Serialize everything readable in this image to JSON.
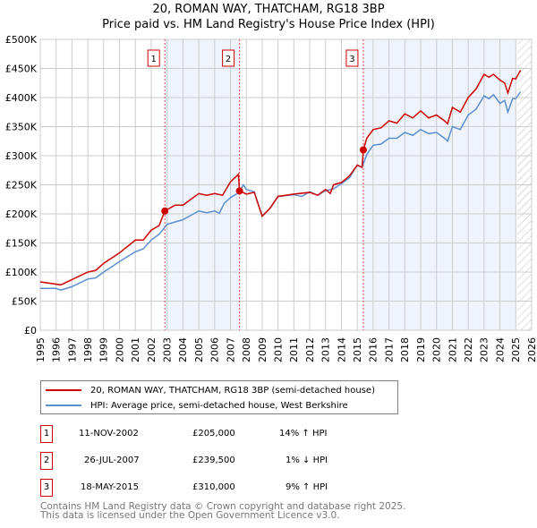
{
  "chart_data": {
    "type": "line",
    "title": "20, ROMAN WAY, THATCHAM, RG18 3BP",
    "subtitle": "Price paid vs. HM Land Registry's House Price Index (HPI)",
    "xlim": [
      1995,
      2026
    ],
    "ylim": [
      0,
      500000
    ],
    "y_ticks": [
      0,
      50000,
      100000,
      150000,
      200000,
      250000,
      300000,
      350000,
      400000,
      450000,
      500000
    ],
    "y_tick_labels": [
      "£0",
      "£50K",
      "£100K",
      "£150K",
      "£200K",
      "£250K",
      "£300K",
      "£350K",
      "£400K",
      "£450K",
      "£500K"
    ],
    "x_ticks": [
      1995,
      1996,
      1997,
      1998,
      1999,
      2000,
      2001,
      2002,
      2003,
      2004,
      2005,
      2006,
      2007,
      2008,
      2009,
      2010,
      2011,
      2012,
      2013,
      2014,
      2015,
      2016,
      2017,
      2018,
      2019,
      2020,
      2021,
      2022,
      2023,
      2024,
      2025,
      2026
    ],
    "grid": true,
    "shaded_periods": [
      [
        2002.86,
        2007.57
      ],
      [
        2015.38,
        2025.0
      ]
    ],
    "forecast_hatch_from": 2025.1,
    "series": [
      {
        "name": "20, ROMAN WAY, THATCHAM, RG18 3BP (semi-detached house)",
        "color": "#cc0000",
        "points": [
          [
            1995,
            83
          ],
          [
            1996.3,
            78
          ],
          [
            1997,
            87
          ],
          [
            1998,
            100
          ],
          [
            1998.5,
            103
          ],
          [
            1999,
            115
          ],
          [
            2000,
            133
          ],
          [
            2001,
            155
          ],
          [
            2001.5,
            155
          ],
          [
            2002,
            172
          ],
          [
            2002.5,
            180
          ],
          [
            2002.86,
            205
          ],
          [
            2003.5,
            215
          ],
          [
            2004,
            215
          ],
          [
            2005,
            235
          ],
          [
            2005.5,
            232
          ],
          [
            2006,
            235
          ],
          [
            2006.5,
            232
          ],
          [
            2007,
            255
          ],
          [
            2007.5,
            268
          ],
          [
            2007.57,
            240
          ],
          [
            2008,
            234
          ],
          [
            2008.5,
            237
          ],
          [
            2009,
            196
          ],
          [
            2009.5,
            210
          ],
          [
            2010,
            230
          ],
          [
            2011,
            234
          ],
          [
            2012,
            237
          ],
          [
            2012.5,
            232
          ],
          [
            2013,
            242
          ],
          [
            2013.3,
            235
          ],
          [
            2013.5,
            250
          ],
          [
            2014,
            254
          ],
          [
            2014.5,
            265
          ],
          [
            2015,
            284
          ],
          [
            2015.3,
            280
          ],
          [
            2015.38,
            310
          ],
          [
            2015.6,
            330
          ],
          [
            2016,
            345
          ],
          [
            2016.5,
            348
          ],
          [
            2017,
            360
          ],
          [
            2017.5,
            356
          ],
          [
            2018,
            372
          ],
          [
            2018.5,
            365
          ],
          [
            2019,
            377
          ],
          [
            2019.5,
            365
          ],
          [
            2020,
            370
          ],
          [
            2020.5,
            360
          ],
          [
            2020.7,
            355
          ],
          [
            2021,
            383
          ],
          [
            2021.5,
            375
          ],
          [
            2022,
            400
          ],
          [
            2022.5,
            415
          ],
          [
            2023,
            440
          ],
          [
            2023.3,
            435
          ],
          [
            2023.6,
            440
          ],
          [
            2024,
            430
          ],
          [
            2024.3,
            425
          ],
          [
            2024.5,
            408
          ],
          [
            2024.8,
            433
          ],
          [
            2025,
            432
          ],
          [
            2025.3,
            447
          ]
        ]
      },
      {
        "name": "HPI: Average price, semi-detached house, West Berkshire",
        "color": "#5b8fd0",
        "points": [
          [
            1995,
            72
          ],
          [
            1996,
            72
          ],
          [
            1996.3,
            69
          ],
          [
            1997,
            75
          ],
          [
            1998,
            88
          ],
          [
            1998.5,
            90
          ],
          [
            1999,
            100
          ],
          [
            2000,
            118
          ],
          [
            2001,
            135
          ],
          [
            2001.5,
            140
          ],
          [
            2002,
            155
          ],
          [
            2002.5,
            165
          ],
          [
            2003,
            182
          ],
          [
            2004,
            190
          ],
          [
            2005,
            205
          ],
          [
            2005.5,
            202
          ],
          [
            2006,
            205
          ],
          [
            2006.3,
            201
          ],
          [
            2006.6,
            218
          ],
          [
            2007,
            228
          ],
          [
            2007.6,
            238
          ],
          [
            2007.8,
            250
          ],
          [
            2008,
            242
          ],
          [
            2008.5,
            238
          ],
          [
            2009,
            196
          ],
          [
            2009.5,
            210
          ],
          [
            2010,
            230
          ],
          [
            2011,
            233
          ],
          [
            2011.5,
            230
          ],
          [
            2012,
            238
          ],
          [
            2012.5,
            232
          ],
          [
            2013,
            240
          ],
          [
            2013.5,
            243
          ],
          [
            2014,
            252
          ],
          [
            2014.5,
            262
          ],
          [
            2015,
            284
          ],
          [
            2015.3,
            280
          ],
          [
            2015.6,
            302
          ],
          [
            2016,
            318
          ],
          [
            2016.5,
            320
          ],
          [
            2017,
            330
          ],
          [
            2017.5,
            330
          ],
          [
            2018,
            340
          ],
          [
            2018.5,
            335
          ],
          [
            2019,
            345
          ],
          [
            2019.5,
            338
          ],
          [
            2020,
            340
          ],
          [
            2020.5,
            330
          ],
          [
            2020.7,
            325
          ],
          [
            2021,
            350
          ],
          [
            2021.5,
            345
          ],
          [
            2022,
            370
          ],
          [
            2022.5,
            380
          ],
          [
            2023,
            403
          ],
          [
            2023.3,
            398
          ],
          [
            2023.6,
            405
          ],
          [
            2024,
            390
          ],
          [
            2024.3,
            395
          ],
          [
            2024.5,
            375
          ],
          [
            2024.8,
            398
          ],
          [
            2025,
            398
          ],
          [
            2025.3,
            410
          ]
        ]
      }
    ],
    "sales": [
      {
        "label": "1",
        "x": 2002.86,
        "price": 205000
      },
      {
        "label": "2",
        "x": 2007.57,
        "price": 239500
      },
      {
        "label": "3",
        "x": 2015.38,
        "price": 310000
      }
    ]
  },
  "legend": [
    "20, ROMAN WAY, THATCHAM, RG18 3BP (semi-detached house)",
    "HPI: Average price, semi-detached house, West Berkshire"
  ],
  "table": [
    {
      "n": "1",
      "date": "11-NOV-2002",
      "price": "£205,000",
      "hpi": "14% ↑ HPI"
    },
    {
      "n": "2",
      "date": "26-JUL-2007",
      "price": "£239,500",
      "hpi": "1% ↓ HPI"
    },
    {
      "n": "3",
      "date": "18-MAY-2015",
      "price": "£310,000",
      "hpi": "9% ↑ HPI"
    }
  ],
  "footer": [
    "Contains HM Land Registry data © Crown copyright and database right 2025.",
    "This data is licensed under the Open Government Licence v3.0."
  ]
}
